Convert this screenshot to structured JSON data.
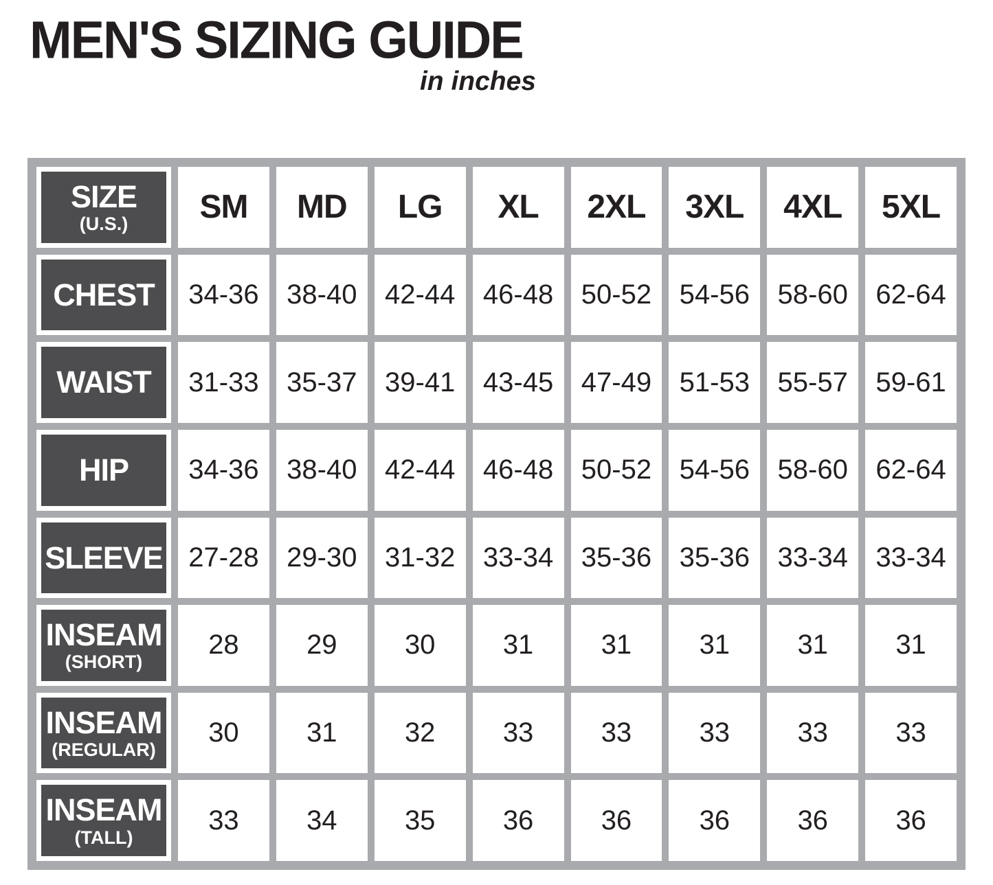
{
  "page": {
    "title": "MEN'S SIZING GUIDE",
    "subtitle": "in inches"
  },
  "colors": {
    "label_cell_bg": "#4d4d4f",
    "grid_frame": "#a8aaad",
    "cell_bg": "#ffffff",
    "text": "#231f20"
  },
  "chart_data": {
    "type": "table",
    "title": "MEN'S SIZING GUIDE",
    "subtitle": "in inches",
    "corner_header": {
      "main": "SIZE",
      "sub": "(U.S.)"
    },
    "columns": [
      "SM",
      "MD",
      "LG",
      "XL",
      "2XL",
      "3XL",
      "4XL",
      "5XL"
    ],
    "rows": [
      {
        "label": "CHEST",
        "sub": "",
        "values": [
          "34-36",
          "38-40",
          "42-44",
          "46-48",
          "50-52",
          "54-56",
          "58-60",
          "62-64"
        ]
      },
      {
        "label": "WAIST",
        "sub": "",
        "values": [
          "31-33",
          "35-37",
          "39-41",
          "43-45",
          "47-49",
          "51-53",
          "55-57",
          "59-61"
        ]
      },
      {
        "label": "HIP",
        "sub": "",
        "values": [
          "34-36",
          "38-40",
          "42-44",
          "46-48",
          "50-52",
          "54-56",
          "58-60",
          "62-64"
        ]
      },
      {
        "label": "SLEEVE",
        "sub": "",
        "values": [
          "27-28",
          "29-30",
          "31-32",
          "33-34",
          "35-36",
          "35-36",
          "33-34",
          "33-34"
        ]
      },
      {
        "label": "INSEAM",
        "sub": "(SHORT)",
        "values": [
          "28",
          "29",
          "30",
          "31",
          "31",
          "31",
          "31",
          "31"
        ]
      },
      {
        "label": "INSEAM",
        "sub": "(REGULAR)",
        "values": [
          "30",
          "31",
          "32",
          "33",
          "33",
          "33",
          "33",
          "33"
        ]
      },
      {
        "label": "INSEAM",
        "sub": "(TALL)",
        "values": [
          "33",
          "34",
          "35",
          "36",
          "36",
          "36",
          "36",
          "36"
        ]
      }
    ]
  }
}
